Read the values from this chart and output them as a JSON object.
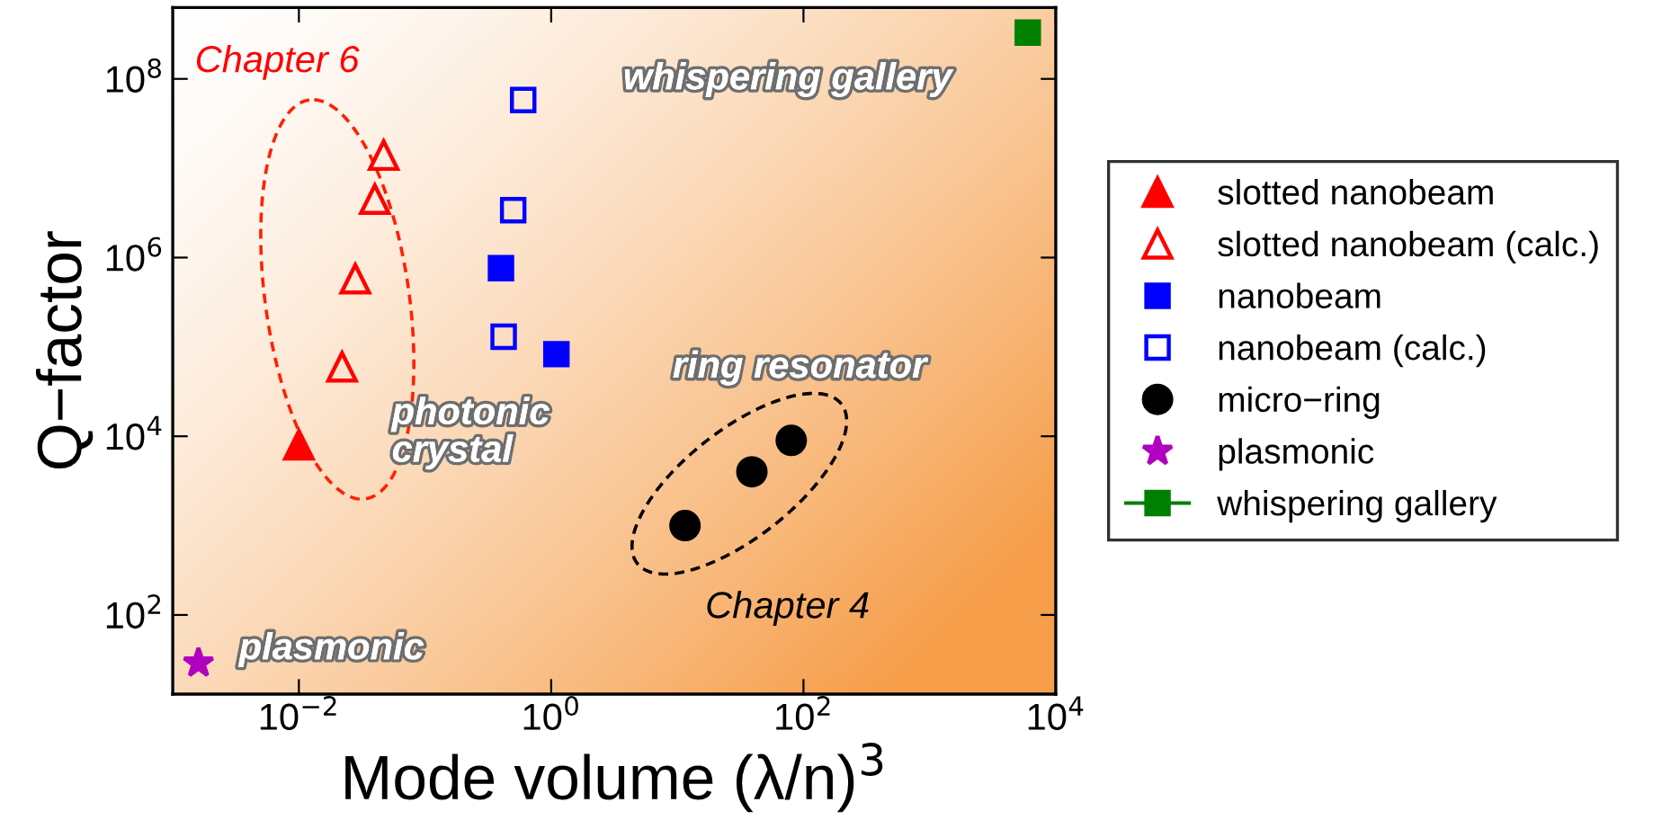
{
  "chart_data": {
    "type": "scatter",
    "xlabel": "Mode volume (λ/n)$^{3}$",
    "ylabel": "Q−factor",
    "log": "xy",
    "grid": false,
    "legend": "right",
    "xlim": [
      0.001,
      10000
    ],
    "ylim": [
      13,
      630000000
    ],
    "xticks": [
      {
        "value": 0.01,
        "label": "10$^{−2}$"
      },
      {
        "value": 1,
        "label": "10$^{0}$"
      },
      {
        "value": 100,
        "label": "10$^{2}$"
      },
      {
        "value": 10000,
        "label": "10$^{4}$"
      }
    ],
    "yticks": [
      {
        "value": 100,
        "label": "10$^{2}$"
      },
      {
        "value": 10000,
        "label": "10$^{4}$"
      },
      {
        "value": 1000000,
        "label": "10$^{6}$"
      },
      {
        "value": 100000000,
        "label": "10$^{8}$"
      }
    ],
    "series": [
      {
        "name": "slotted nanobeam",
        "color": "#ff0000",
        "marker": "triangle",
        "x": [
          0.01
        ],
        "values": [
          8000
        ]
      },
      {
        "name": "slotted nanobeam (calc.)",
        "color": "#ff0000",
        "marker": "triangle",
        "x": [
          0.047,
          0.04,
          0.028,
          0.022
        ],
        "values": [
          14000000,
          4500000,
          580000,
          60000
        ]
      },
      {
        "name": "nanobeam",
        "color": "#0000ff",
        "marker": "square",
        "x": [
          0.4,
          1.1
        ],
        "values": [
          760000,
          83000
        ]
      },
      {
        "name": "nanobeam (calc.)",
        "color": "#0000ff",
        "marker": "square",
        "x": [
          0.6,
          0.5,
          0.42
        ],
        "values": [
          58000000,
          3400000,
          130000
        ]
      },
      {
        "name": "micro−ring",
        "color": "#000000",
        "marker": "circle",
        "x": [
          11.5,
          39,
          80
        ],
        "values": [
          1000,
          4000,
          9000
        ]
      },
      {
        "name": "plasmonic",
        "color": "#b000c0",
        "marker": "star",
        "x": [
          0.0016
        ],
        "values": [
          29
        ]
      },
      {
        "name": "whispering gallery",
        "color": "#008000",
        "marker": "square",
        "line_style": "solid",
        "x": [
          6000
        ],
        "values": [
          330000000
        ]
      }
    ],
    "annotations": [
      "Chapter 6",
      "whispering gallery",
      "photonic\ncrystal",
      "ring resonator",
      "Chapter 4",
      "plasmonic"
    ]
  }
}
